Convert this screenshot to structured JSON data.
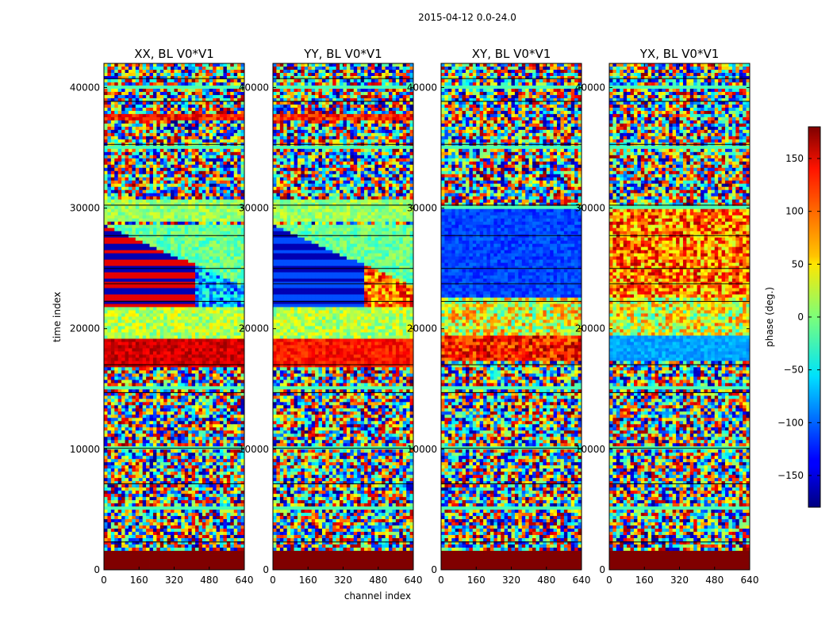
{
  "figure": {
    "suptitle": "2015-04-12 0.0-24.0"
  },
  "chart_data": {
    "type": "heatmap",
    "title": "2015-04-12 0.0-24.0",
    "xlabel": "channel index",
    "ylabel": "time index",
    "xlim": [
      0,
      640
    ],
    "ylim": [
      0,
      42000
    ],
    "xticks": [
      "0",
      "160",
      "320",
      "480",
      "640"
    ],
    "xtick_values": [
      0,
      160,
      320,
      480,
      640
    ],
    "yticks": [
      "0",
      "10000",
      "20000",
      "30000",
      "40000"
    ],
    "ytick_values": [
      0,
      10000,
      20000,
      30000,
      40000
    ],
    "colormap": "jet",
    "panels": [
      {
        "title": "XX, BL V0*V1",
        "pattern": "parallel",
        "pol": "XX"
      },
      {
        "title": "YY, BL V0*V1",
        "pattern": "parallel",
        "pol": "YY"
      },
      {
        "title": "XY, BL V0*V1",
        "pattern": "cross",
        "pol": "XY"
      },
      {
        "title": "YX, BL V0*V1",
        "pattern": "cross",
        "pol": "YX"
      }
    ],
    "colorbar": {
      "label": "phase (deg.)",
      "range": [
        -180,
        180
      ],
      "ticks": [
        "150",
        "100",
        "50",
        "0",
        "−50",
        "−100",
        "−150"
      ],
      "tick_values": [
        150,
        100,
        50,
        0,
        -50,
        -100,
        -150
      ]
    }
  }
}
